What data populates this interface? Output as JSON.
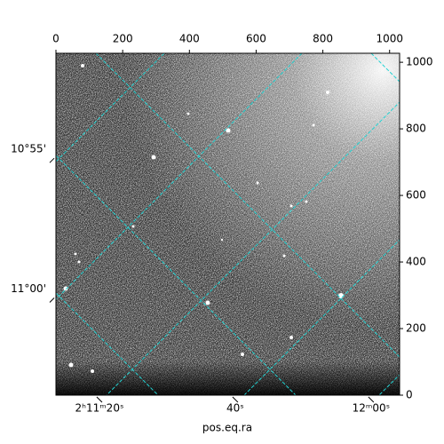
{
  "chart_data": {
    "type": "image",
    "xlabel": "pos.eq.ra",
    "xlim": [
      0,
      1030
    ],
    "xticks": [
      0,
      200,
      400,
      600,
      800,
      1000
    ],
    "ylim": [
      0,
      1027
    ],
    "yticks": [
      0,
      200,
      400,
      600,
      800,
      1000
    ],
    "ra_lim": [
      13.6,
      64.2
    ],
    "ra_ticks": [
      {
        "value": 20,
        "label": "2ʰ11ᵐ20ˢ"
      },
      {
        "value": 40,
        "label": "40ˢ"
      },
      {
        "value": 60,
        "label": "12ᵐ00ˢ"
      }
    ],
    "dec_lim": [
      51.56,
      63.8
    ],
    "dec_ticks": [
      {
        "value": 55,
        "label": "10°55'"
      },
      {
        "value": 60,
        "label": "11°00'"
      }
    ],
    "grid_color": "#22d3d3"
  }
}
